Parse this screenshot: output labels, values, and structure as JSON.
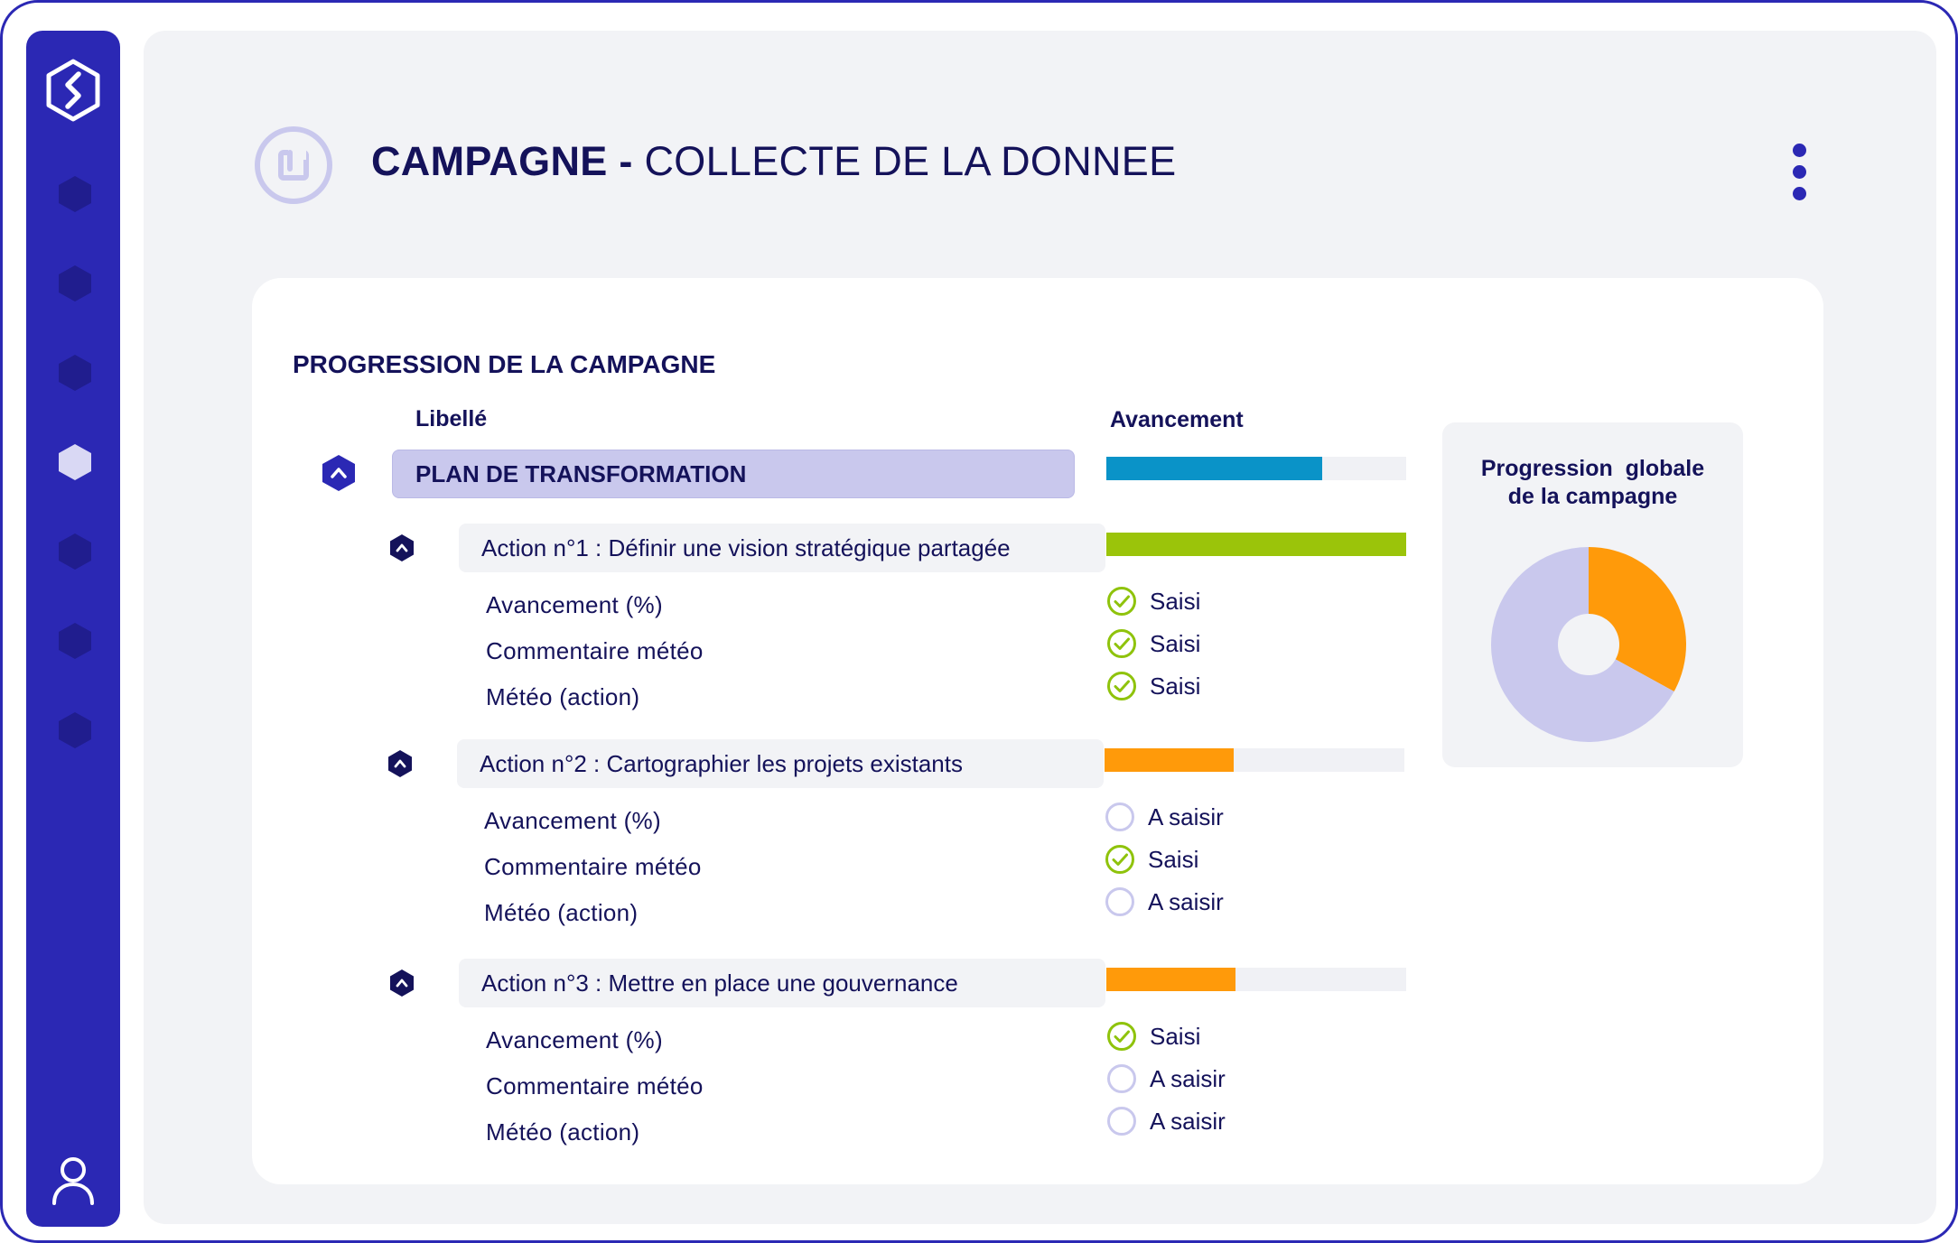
{
  "header": {
    "title_bold": "CAMPAGNE -",
    "title_light": "COLLECTE DE LA DONNEE"
  },
  "sidebar": {
    "logo_icon": "hexagon-s-logo",
    "active_index": 3,
    "items": [
      {
        "icon": "hexagon-icon"
      },
      {
        "icon": "hexagon-icon"
      },
      {
        "icon": "hexagon-icon"
      },
      {
        "icon": "hexagon-icon"
      },
      {
        "icon": "hexagon-icon"
      },
      {
        "icon": "hexagon-icon"
      },
      {
        "icon": "hexagon-icon"
      }
    ],
    "user_icon": "user-icon"
  },
  "colors": {
    "primary": "#2b28b4",
    "navy": "#14125a",
    "lavender": "#c9c8ed",
    "blue_bar": "#0a93c8",
    "green_bar": "#9bc40a",
    "orange_bar": "#ff9a0a",
    "check_green": "#8fc30c",
    "empty_circle": "#c9c8ed"
  },
  "card": {
    "title": "PROGRESSION DE LA CAMPAGNE",
    "col_label": "Libellé",
    "col_progress": "Avancement"
  },
  "plan": {
    "label": "PLAN DE TRANSFORMATION",
    "progress": 0.72,
    "color": "#0a93c8"
  },
  "actions": [
    {
      "label": "Action n°1 : Définir une vision stratégique partagée",
      "progress": 1.0,
      "color": "#9bc40a",
      "fields": [
        {
          "label": "Avancement (%)",
          "status": "Saisi",
          "done": true
        },
        {
          "label": "Commentaire météo",
          "status": "Saisi",
          "done": true
        },
        {
          "label": "Météo (action)",
          "status": "Saisi",
          "done": true
        }
      ]
    },
    {
      "label": "Action n°2 : Cartographier les projets existants",
      "progress": 0.43,
      "color": "#ff9a0a",
      "fields": [
        {
          "label": "Avancement (%)",
          "status": "A saisir",
          "done": false
        },
        {
          "label": "Commentaire météo",
          "status": "Saisi",
          "done": true
        },
        {
          "label": "Météo (action)",
          "status": "A saisir",
          "done": false
        }
      ]
    },
    {
      "label": "Action n°3 : Mettre en place une gouvernance",
      "progress": 0.43,
      "color": "#ff9a0a",
      "fields": [
        {
          "label": "Avancement (%)",
          "status": "Saisi",
          "done": true
        },
        {
          "label": "Commentaire météo",
          "status": "A saisir",
          "done": false
        },
        {
          "label": "Météo (action)",
          "status": "A saisir",
          "done": false
        }
      ]
    }
  ],
  "pie": {
    "title_line1": "Progression  globale",
    "title_line2": "de la campagne"
  },
  "chart_data": {
    "type": "pie",
    "title": "Progression  globale de la campagne",
    "values": [
      0.33,
      0.67
    ],
    "colors": [
      "#ff9a0a",
      "#c9c8ed"
    ],
    "donut": true
  }
}
